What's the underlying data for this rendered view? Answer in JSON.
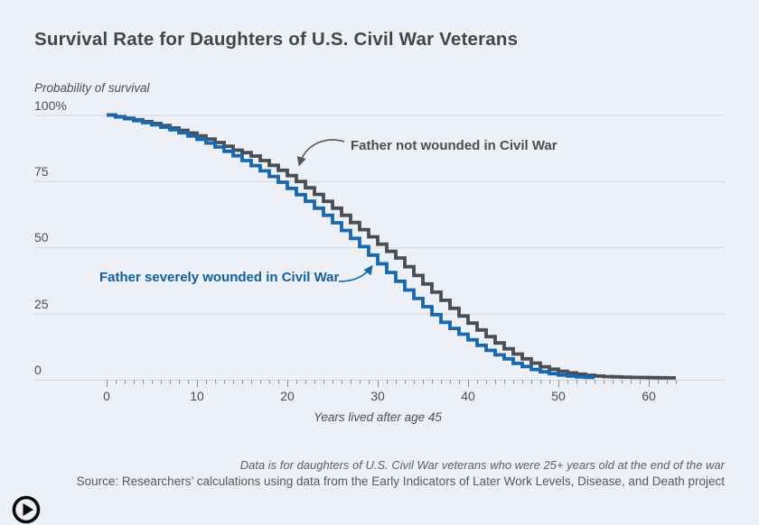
{
  "header": {
    "title": "Survival Rate for Daughters of U.S. Civil War Veterans"
  },
  "chart_data": {
    "type": "line",
    "variant": "survival-step",
    "title": "Survival Rate for Daughters of U.S. Civil War Veterans",
    "ylabel": "Probability of survival",
    "xlabel": "Years lived after age 45",
    "xlim": [
      0,
      68
    ],
    "ylim": [
      0,
      100
    ],
    "grid": "horizontal",
    "legend_position": "inline-annotations",
    "x_ticks": [
      0,
      10,
      20,
      30,
      40,
      50,
      60
    ],
    "minor_x_tick_interval_years": 1,
    "y_ticks": [
      0,
      25,
      50,
      75,
      100
    ],
    "y_tick_labels": [
      "0",
      "25",
      "50",
      "75",
      "100%"
    ],
    "x_start_year": 0,
    "step_width_years": 1,
    "series": [
      {
        "name": "Father not wounded in Civil War",
        "color": "#4a4e54",
        "values": [
          100,
          99.4,
          98.8,
          98.2,
          97.5,
          96.8,
          96,
          95.1,
          94.2,
          93.2,
          92.1,
          90.9,
          89.6,
          88.2,
          86.7,
          85.8,
          84.5,
          82.8,
          81,
          79.1,
          77.1,
          74.9,
          72.5,
          70,
          67.4,
          64.8,
          62.1,
          59.4,
          56.7,
          54,
          51.2,
          48.5,
          46,
          42.7,
          39.4,
          36.2,
          33.1,
          30,
          27,
          24.1,
          21.4,
          18.8,
          16.3,
          13.9,
          11.7,
          9.7,
          7.9,
          6.3,
          4.9,
          4,
          3.2,
          2.6,
          2.1,
          1.7,
          1.4,
          1.2,
          1.1,
          1,
          0.9,
          0.85,
          0.8,
          0.75,
          0.7
        ]
      },
      {
        "name": "Father severely wounded in Civil War",
        "color": "#1868b0",
        "values": [
          100,
          99.3,
          98.6,
          97.9,
          97.1,
          96.3,
          95.4,
          94.4,
          93.3,
          92.1,
          90.8,
          89.4,
          87.9,
          86.3,
          84.6,
          82.8,
          80.9,
          78.9,
          76.8,
          74.6,
          72.3,
          69.9,
          67.4,
          64.8,
          62.1,
          59.3,
          56.4,
          53.4,
          50.3,
          47.1,
          43.8,
          40.5,
          37.2,
          33.9,
          30.7,
          27.6,
          24.6,
          21.7,
          19.4,
          17.2,
          15.1,
          13,
          11.1,
          9.4,
          7.9,
          6.2,
          5,
          3.9,
          3,
          2.3,
          1.8,
          1.4,
          1.1,
          0.9
        ]
      }
    ]
  },
  "footer": {
    "note": "Data is for daughters of U.S. Civil War veterans who were 25+ years old at the end of the war",
    "source": "Source: Researchers’ calculations using data from the Early Indicators of Later Work Levels, Disease, and Death project"
  },
  "icons": {
    "play": "circled-play"
  },
  "colors": {
    "background": "#edf0f6",
    "grid": "#d3d7dd",
    "tick": "#878d95",
    "title_text": "#42464b",
    "axis_text": "#4b5056",
    "muted_text": "#5d6167",
    "series_not_wounded": "#4a4e54",
    "series_severely_wounded": "#1868b0",
    "play_icon": "#0b0b0b"
  }
}
